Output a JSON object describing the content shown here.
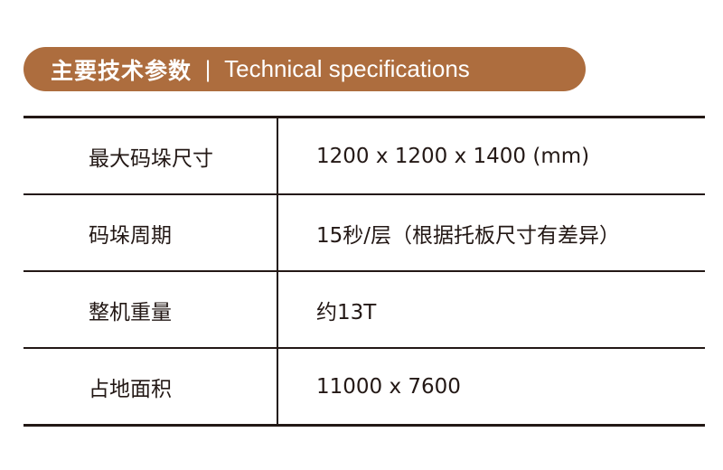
{
  "header": {
    "title_zh": "主要技术参数",
    "separator": "|",
    "title_en": "Technical specifications",
    "color": "#ad6d3e"
  },
  "rows": [
    {
      "label": "最大码垛尺寸",
      "value": "1200 x 1200 x 1400 (mm)"
    },
    {
      "label": "码垛周期",
      "value": "15秒/层（根据托板尺寸有差异）"
    },
    {
      "label": "整机重量",
      "value": "约13T"
    },
    {
      "label": "占地面积",
      "value": "11000 x 7600"
    }
  ]
}
